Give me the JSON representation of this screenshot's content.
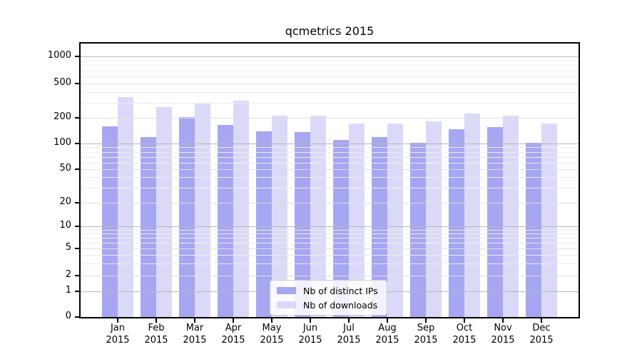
{
  "chart_data": {
    "type": "bar",
    "title": "qcmetrics 2015",
    "categories": [
      "Jan",
      "Feb",
      "Mar",
      "Apr",
      "May",
      "Jun",
      "Jul",
      "Aug",
      "Sep",
      "Oct",
      "Nov",
      "Dec"
    ],
    "category_year": "2015",
    "series": [
      {
        "name": "Nb of distinct IPs",
        "color": "#a6a6f3",
        "values": [
          160,
          120,
          205,
          165,
          140,
          135,
          110,
          120,
          101,
          146,
          157,
          101
        ]
      },
      {
        "name": "Nb of downloads",
        "color": "#dadaf8",
        "values": [
          350,
          265,
          300,
          315,
          213,
          213,
          170,
          170,
          180,
          225,
          213,
          170
        ]
      }
    ],
    "y_axis": {
      "scale": "symlog",
      "tick_labels": [
        "0",
        "1",
        "2",
        "5",
        "10",
        "20",
        "50",
        "100",
        "200",
        "500",
        "1000"
      ],
      "ylim": [
        0,
        1400
      ]
    },
    "legend": {
      "position": "lower-center-inside"
    },
    "grid": {
      "enabled": true,
      "major_color": "#b9b9b9",
      "minor_color": "#ececec"
    }
  }
}
